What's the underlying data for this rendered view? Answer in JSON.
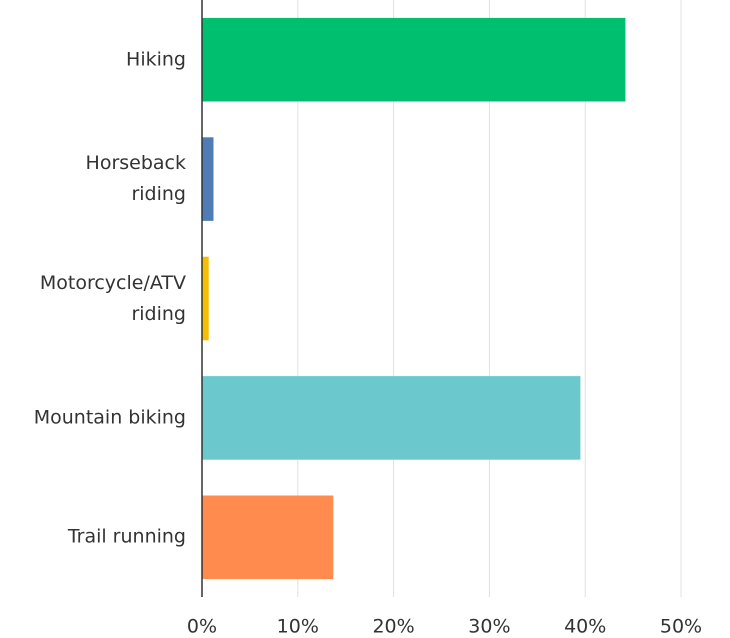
{
  "chart_data": {
    "type": "barh",
    "categories": [
      "Hiking",
      "Horseback\nriding",
      "Motorcycle/ATV\nriding",
      "Mountain biking",
      "Trail running"
    ],
    "values": [
      44.2,
      1.2,
      0.7,
      39.5,
      13.7
    ],
    "colors": [
      "#00bf6f",
      "#507cb6",
      "#f5be00",
      "#6bc8cd",
      "#ff8b4f"
    ],
    "xlim": [
      0,
      55
    ],
    "xticks": [
      {
        "value": 0,
        "label": "0%"
      },
      {
        "value": 10,
        "label": "10%"
      },
      {
        "value": 20,
        "label": "20%"
      },
      {
        "value": 30,
        "label": "30%"
      },
      {
        "value": 40,
        "label": "40%"
      },
      {
        "value": 50,
        "label": "50%"
      }
    ],
    "grid": true
  }
}
